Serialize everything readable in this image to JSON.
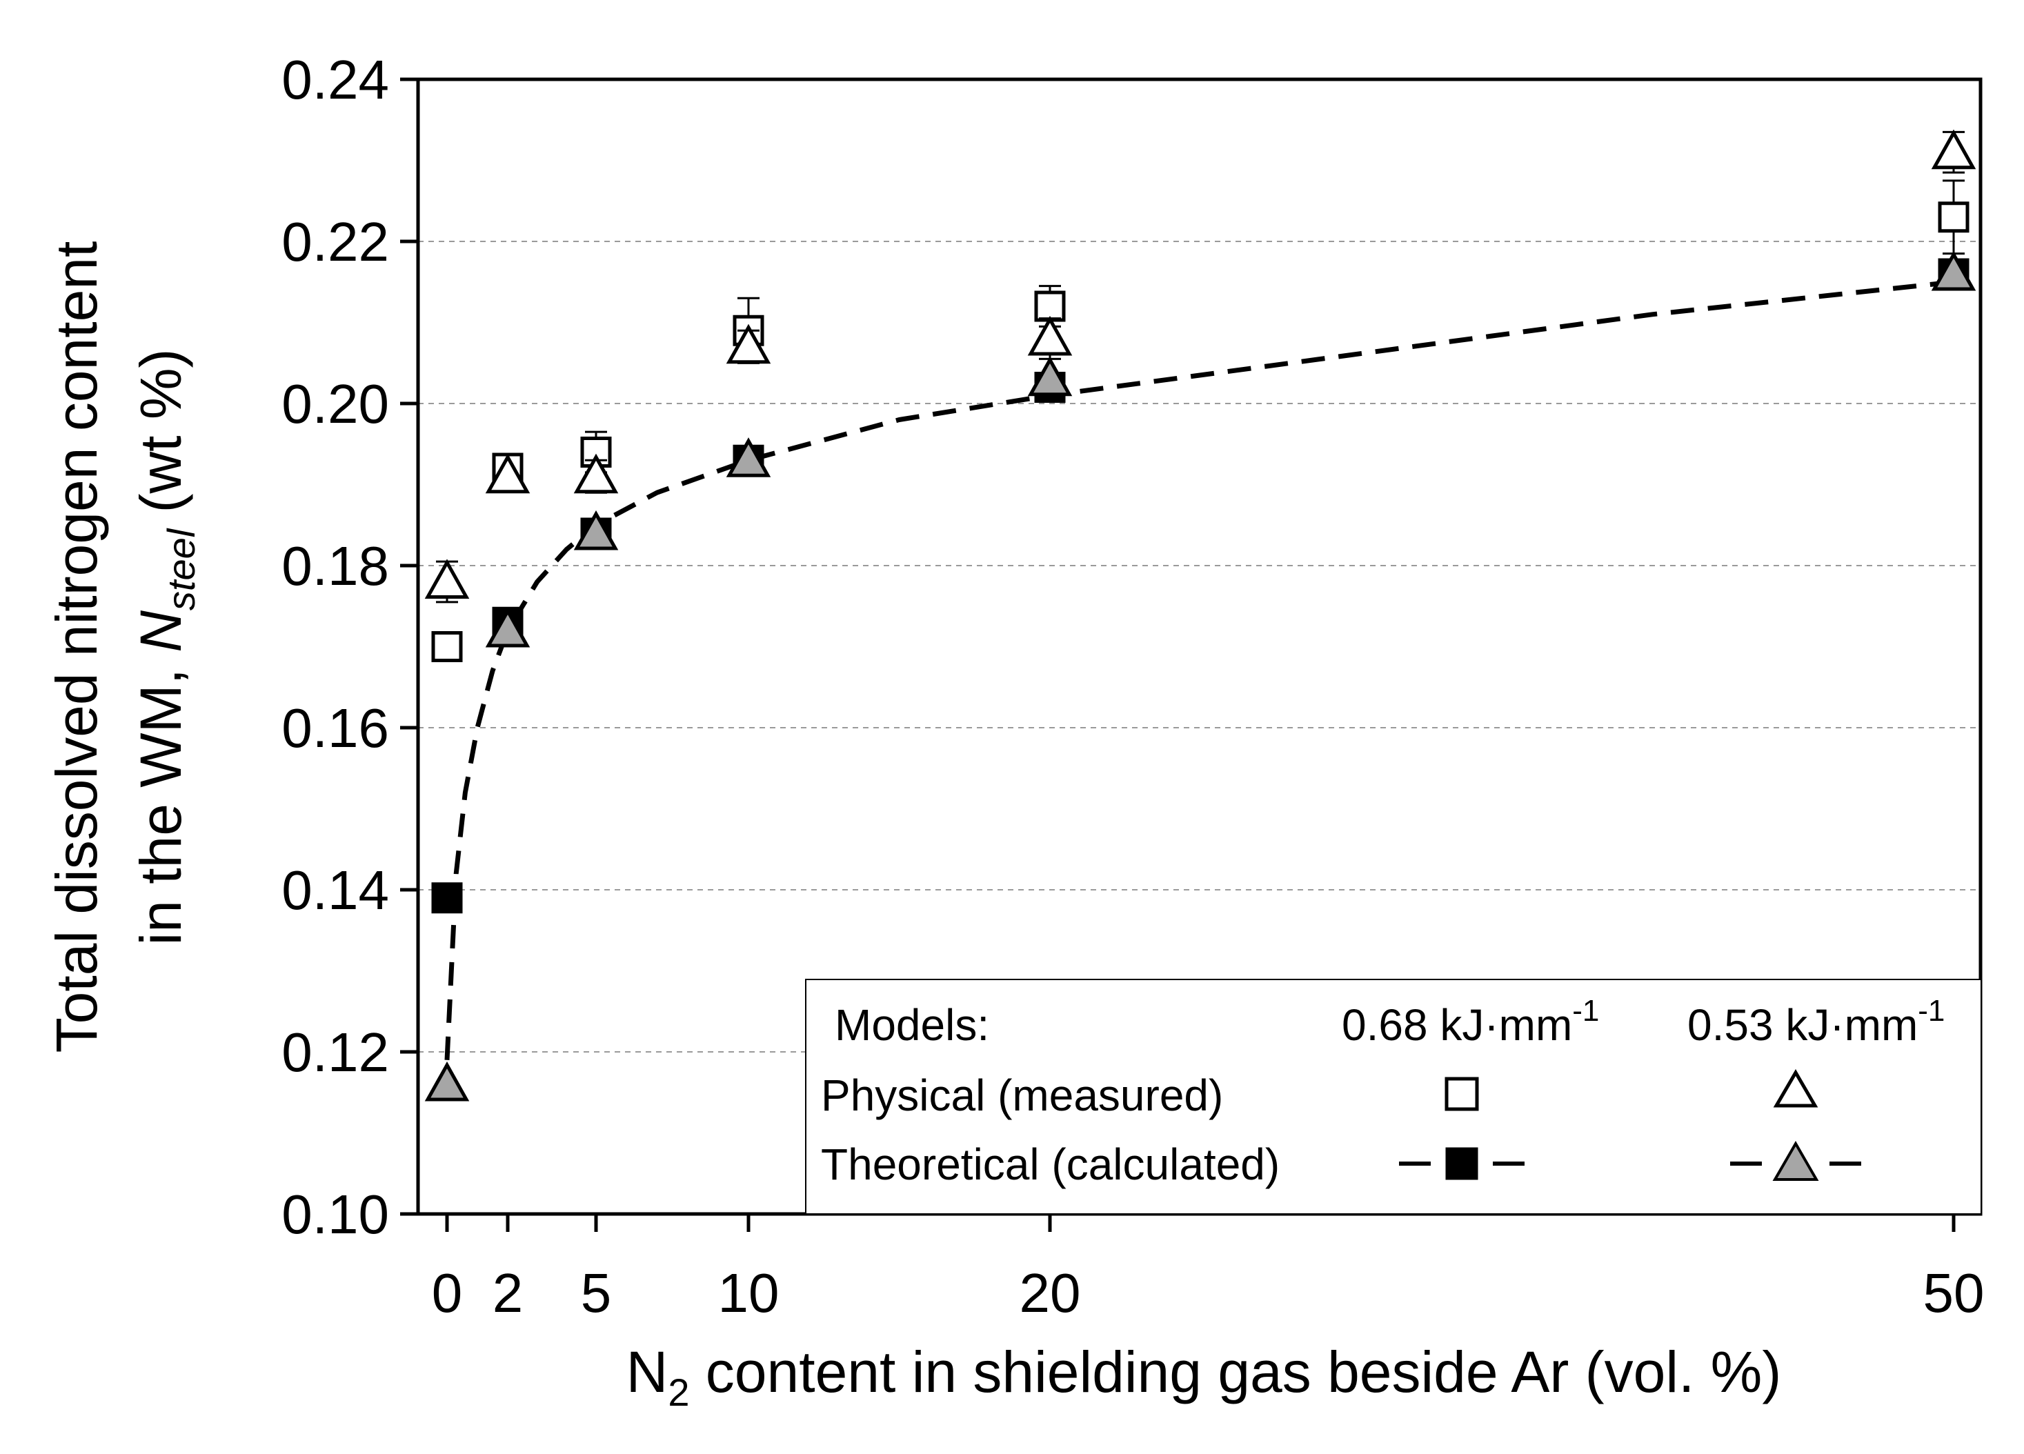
{
  "chart_data": {
    "type": "scatter",
    "title": "",
    "xlabel": {
      "main": "N",
      "sub": "2",
      "rest": " content in shielding gas beside Ar (vol. %)"
    },
    "ylabel": {
      "line1": "Total dissolved nitrogen content",
      "line2_prefix": "in the WM, ",
      "line2_N": "N",
      "line2_sub": "steel",
      "line2_suffix": " (wt %)"
    },
    "x_ticks": [
      0,
      2,
      5,
      10,
      20,
      50
    ],
    "x_tick_labels": [
      "0",
      "2",
      "5",
      "10",
      "20",
      "50"
    ],
    "y_ticks": [
      0.1,
      0.12,
      0.14,
      0.16,
      0.18,
      0.2,
      0.22,
      0.24
    ],
    "y_tick_labels": [
      "0.10",
      "0.12",
      "0.14",
      "0.16",
      "0.18",
      "0.20",
      "0.22",
      "0.24"
    ],
    "ylim": [
      0.1,
      0.24
    ],
    "grid": "horizontal dashed",
    "series": [
      {
        "name": "Physical (measured) 0.68 kJ·mm-1",
        "marker": "square-open",
        "x": [
          0,
          2,
          5,
          10,
          20,
          50
        ],
        "y": [
          0.17,
          0.192,
          0.194,
          0.209,
          0.212,
          0.223
        ],
        "err": [
          0.0,
          0.001,
          0.0025,
          0.004,
          0.0025,
          0.0045
        ]
      },
      {
        "name": "Physical (measured) 0.53 kJ·mm-1",
        "marker": "triangle-open",
        "x": [
          0,
          2,
          5,
          10,
          20,
          50
        ],
        "y": [
          0.178,
          0.191,
          0.191,
          0.207,
          0.208,
          0.231
        ],
        "err": [
          0.0025,
          0.0,
          0.002,
          0.002,
          0.0025,
          0.0025
        ]
      },
      {
        "name": "Theoretical (calculated) 0.68 kJ·mm-1",
        "marker": "square-filled",
        "line": "dashed",
        "x": [
          0,
          2,
          5,
          10,
          20,
          50
        ],
        "y": [
          0.139,
          0.173,
          0.184,
          0.193,
          0.202,
          0.216
        ]
      },
      {
        "name": "Theoretical (calculated) 0.53 kJ·mm-1",
        "marker": "triangle-gray",
        "line": "dashed",
        "x": [
          0,
          2,
          5,
          10,
          20,
          50
        ],
        "y": [
          0.116,
          0.172,
          0.184,
          0.193,
          0.203,
          0.216
        ]
      }
    ],
    "fit_curve": {
      "x": [
        0.0,
        0.3,
        0.6,
        1.0,
        1.5,
        2.0,
        3.0,
        4.0,
        5.0,
        7.0,
        10.0,
        15.0,
        20.0,
        30.0,
        40.0,
        50.0
      ],
      "y": [
        0.119,
        0.142,
        0.152,
        0.16,
        0.167,
        0.172,
        0.178,
        0.182,
        0.185,
        0.189,
        0.193,
        0.198,
        0.201,
        0.206,
        0.211,
        0.215
      ]
    },
    "legend": {
      "title": "Models:",
      "col1": {
        "main": "0.68 kJ·mm",
        "sup": "-1"
      },
      "col2": {
        "main": "0.53 kJ·mm",
        "sup": "-1"
      },
      "row1": "Physical (measured)",
      "row2": "Theoretical (calculated)",
      "position": "bottom-right"
    }
  }
}
